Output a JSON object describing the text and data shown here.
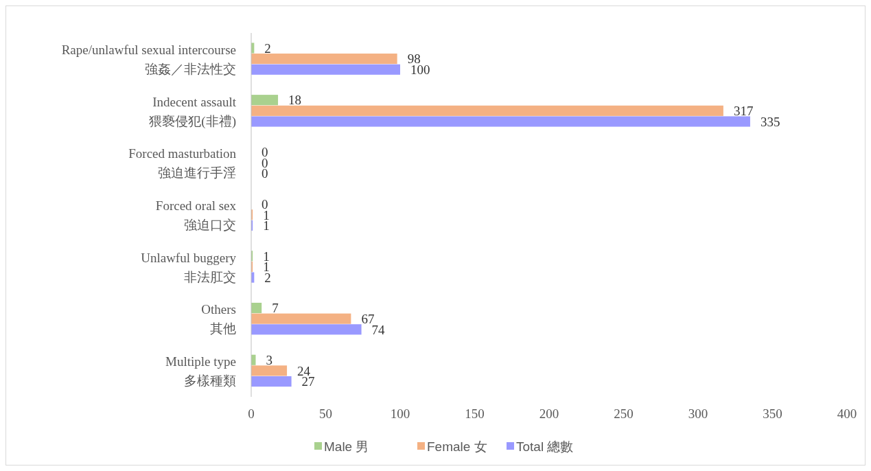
{
  "chart_data": {
    "type": "bar",
    "orientation": "horizontal",
    "categories": [
      "Rape/unlawful sexual intercourse\n強姦／非法性交",
      "Indecent assault\n猥褻侵犯(非禮)",
      "Forced masturbation\n強迫進行手淫",
      "Forced oral sex\n強迫口交",
      "Unlawful buggery\n非法肛交",
      "Others\n其他",
      "Multiple type\n多樣種類"
    ],
    "series": [
      {
        "name": "Male 男",
        "color": "#a9d18e",
        "values": [
          2,
          18,
          0,
          0,
          1,
          7,
          3
        ]
      },
      {
        "name": "Female 女",
        "color": "#f4b183",
        "values": [
          98,
          317,
          0,
          1,
          1,
          67,
          24
        ]
      },
      {
        "name": "Total 總數",
        "color": "#9999ff",
        "values": [
          100,
          335,
          0,
          1,
          2,
          74,
          27
        ]
      }
    ],
    "xlim": [
      0,
      400
    ],
    "xticks": [
      0,
      50,
      100,
      150,
      200,
      250,
      300,
      350,
      400
    ],
    "data_labels": true,
    "legend": "bottom",
    "grid": false
  }
}
